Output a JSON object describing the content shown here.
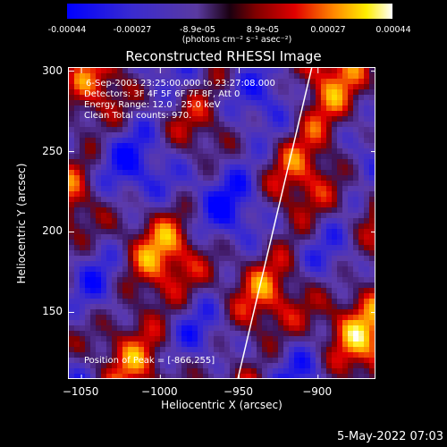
{
  "colorbar": {
    "ticks": [
      "-0.00044",
      "-0.00027",
      "-8.9e-05",
      "8.9e-05",
      "0.00027",
      "0.00044"
    ],
    "units": "(photons cm⁻² s⁻¹ asec⁻²)"
  },
  "info": {
    "time": "6-Sep-2003 23:25:00.000 to 23:27:08.000",
    "detectors": "Detectors: 3F 4F 5F 6F 7F 8F, Att 0",
    "energy": "Energy Range: 12.0 - 25.0 keV",
    "clean": "Clean     Total counts: 970.",
    "peak": "Position of Peak = [-866,255]"
  },
  "footer": "5-May-2022 07:03",
  "chart_data": {
    "type": "heatmap",
    "title": "Reconstructed RHESSI Image",
    "xlabel": "Heliocentric X (arcsec)",
    "ylabel": "Heliocentric Y (arcsec)",
    "xlim": [
      -1058,
      -863
    ],
    "ylim": [
      108,
      302
    ],
    "xticks": [
      -1050,
      -1000,
      -950,
      -900
    ],
    "yticks": [
      150,
      200,
      250,
      300
    ],
    "xtick_labels": [
      "−1050",
      "−1000",
      "−950",
      "−900"
    ],
    "ytick_labels": [
      "150",
      "200",
      "250",
      "300"
    ],
    "limb_line": [
      [
        -951,
        108
      ],
      [
        -904,
        302
      ]
    ],
    "peak": [
      -866,
      255
    ],
    "colorbar_range": [
      -0.00044,
      0.00044
    ]
  }
}
